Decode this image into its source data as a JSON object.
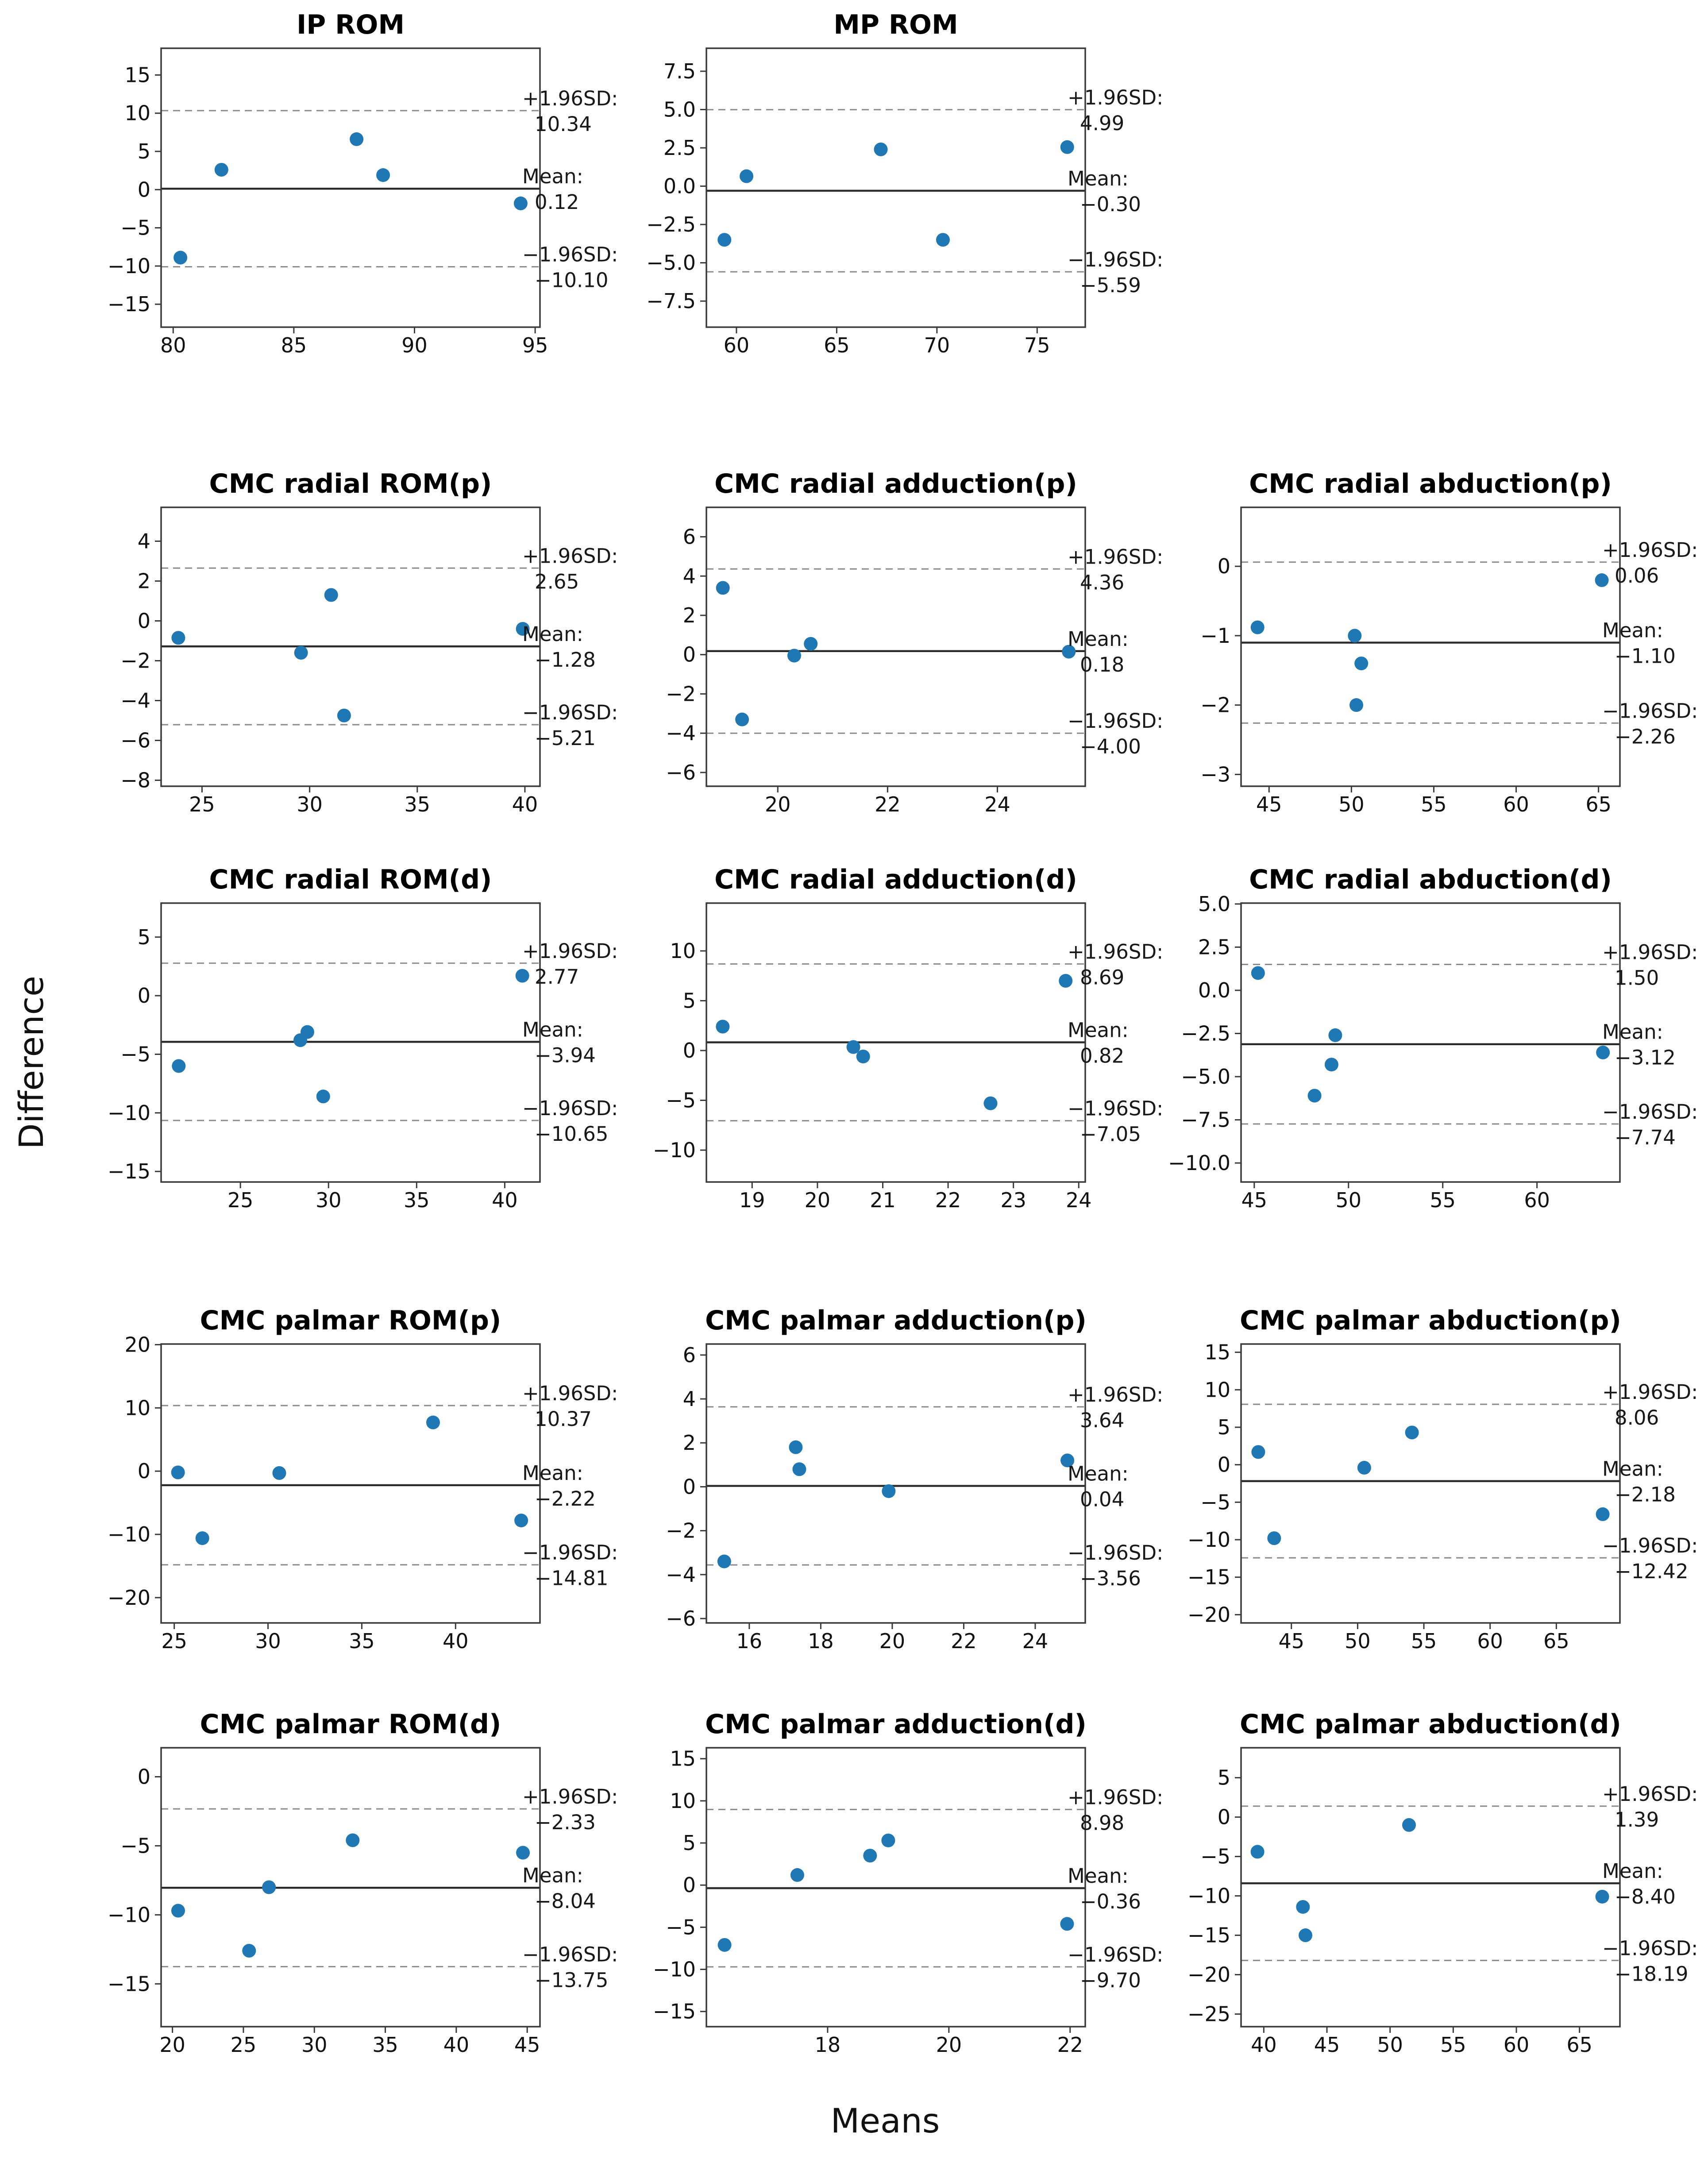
{
  "figure": {
    "ylabel": "Difference",
    "xlabel": "Means",
    "annotations": {
      "upper_label": "+1.96SD:",
      "mean_label": "Mean:",
      "lower_label": "−1.96SD:"
    },
    "colors": {
      "point": "#1f77b4",
      "mean_line": "#2b2b2b",
      "sd_line": "#8a8a8a",
      "spine": "#3a3a3a",
      "text": "#1a1a1a"
    }
  },
  "chart_data": {
    "type": "scatter",
    "subtype": "bland-altman-grid",
    "grid": false,
    "legend": false,
    "shared_xlabel": "Means",
    "shared_ylabel": "Difference",
    "plots": [
      {
        "title": "IP ROM",
        "xlim": [
          79.5,
          95.2
        ],
        "ylim": [
          -18.0,
          18.5
        ],
        "xticks": [
          80,
          85,
          90,
          95
        ],
        "xtick_labels": [
          "80",
          "85",
          "90",
          "95"
        ],
        "yticks": [
          15,
          10,
          5,
          0,
          -5,
          -10,
          -15
        ],
        "ytick_labels": [
          "15",
          "10",
          "5",
          "0",
          "−5",
          "−10",
          "−15"
        ],
        "points": [
          [
            80.3,
            -8.9
          ],
          [
            82.0,
            2.6
          ],
          [
            87.6,
            6.6
          ],
          [
            88.7,
            1.9
          ],
          [
            94.4,
            -1.8
          ]
        ],
        "mean": 0.12,
        "upper": 10.34,
        "lower": -10.1,
        "mean_text": "0.12",
        "upper_text": "10.34",
        "lower_text": "−10.10"
      },
      {
        "title": "MP ROM",
        "xlim": [
          58.5,
          77.4
        ],
        "ylim": [
          -9.2,
          9.0
        ],
        "xticks": [
          60,
          65,
          70,
          75
        ],
        "xtick_labels": [
          "60",
          "65",
          "70",
          "75"
        ],
        "yticks": [
          7.5,
          5.0,
          2.5,
          0.0,
          -2.5,
          -5.0,
          -7.5
        ],
        "ytick_labels": [
          "7.5",
          "5.0",
          "2.5",
          "0.0",
          "−2.5",
          "−5.0",
          "−7.5"
        ],
        "points": [
          [
            59.4,
            -3.5
          ],
          [
            60.5,
            0.65
          ],
          [
            67.2,
            2.4
          ],
          [
            70.3,
            -3.5
          ],
          [
            76.5,
            2.55
          ]
        ],
        "mean": -0.3,
        "upper": 4.99,
        "lower": -5.59,
        "mean_text": "−0.30",
        "upper_text": "4.99",
        "lower_text": "−5.59"
      },
      {
        "title": "CMC radial ROM(p)",
        "xlim": [
          23.1,
          40.7
        ],
        "ylim": [
          -8.3,
          5.7
        ],
        "xticks": [
          25,
          30,
          35,
          40
        ],
        "xtick_labels": [
          "25",
          "30",
          "35",
          "40"
        ],
        "yticks": [
          4,
          2,
          0,
          -2,
          -4,
          -6,
          -8
        ],
        "ytick_labels": [
          "4",
          "2",
          "0",
          "−2",
          "−4",
          "−6",
          "−8"
        ],
        "points": [
          [
            23.9,
            -0.85
          ],
          [
            29.6,
            -1.6
          ],
          [
            31.0,
            1.3
          ],
          [
            31.6,
            -4.75
          ],
          [
            39.9,
            -0.4
          ]
        ],
        "mean": -1.28,
        "upper": 2.65,
        "lower": -5.21,
        "mean_text": "−1.28",
        "upper_text": "2.65",
        "lower_text": "−5.21"
      },
      {
        "title": "CMC radial adduction(p)",
        "xlim": [
          18.7,
          25.6
        ],
        "ylim": [
          -6.7,
          7.5
        ],
        "xticks": [
          20,
          22,
          24
        ],
        "xtick_labels": [
          "20",
          "22",
          "24"
        ],
        "yticks": [
          6,
          4,
          2,
          0,
          -2,
          -4,
          -6
        ],
        "ytick_labels": [
          "6",
          "4",
          "2",
          "0",
          "−2",
          "−4",
          "−6"
        ],
        "points": [
          [
            19.0,
            3.4
          ],
          [
            19.35,
            -3.3
          ],
          [
            20.3,
            -0.05
          ],
          [
            20.6,
            0.55
          ],
          [
            25.3,
            0.15
          ]
        ],
        "mean": 0.18,
        "upper": 4.36,
        "lower": -4.0,
        "mean_text": "0.18",
        "upper_text": "4.36",
        "lower_text": "−4.00"
      },
      {
        "title": "CMC radial abduction(p)",
        "xlim": [
          43.3,
          66.3
        ],
        "ylim": [
          -3.17,
          0.85
        ],
        "xticks": [
          45,
          50,
          55,
          60,
          65
        ],
        "xtick_labels": [
          "45",
          "50",
          "55",
          "60",
          "65"
        ],
        "yticks": [
          0,
          -1,
          -2,
          -3
        ],
        "ytick_labels": [
          "0",
          "−1",
          "−2",
          "−3"
        ],
        "points": [
          [
            44.3,
            -0.88
          ],
          [
            50.2,
            -1.0
          ],
          [
            50.6,
            -1.4
          ],
          [
            50.3,
            -2.0
          ],
          [
            65.2,
            -0.2
          ]
        ],
        "mean": -1.1,
        "upper": 0.06,
        "lower": -2.26,
        "mean_text": "−1.10",
        "upper_text": "0.06",
        "lower_text": "−2.26"
      },
      {
        "title": "CMC radial ROM(d)",
        "xlim": [
          20.5,
          42.0
        ],
        "ylim": [
          -15.9,
          7.9
        ],
        "xticks": [
          25,
          30,
          35,
          40
        ],
        "xtick_labels": [
          "25",
          "30",
          "35",
          "40"
        ],
        "yticks": [
          5,
          0,
          -5,
          -10,
          -15
        ],
        "ytick_labels": [
          "5",
          "0",
          "−5",
          "−10",
          "−15"
        ],
        "points": [
          [
            21.5,
            -6.0
          ],
          [
            28.4,
            -3.8
          ],
          [
            28.8,
            -3.1
          ],
          [
            29.7,
            -8.6
          ],
          [
            41.0,
            1.7
          ]
        ],
        "mean": -3.94,
        "upper": 2.77,
        "lower": -10.65,
        "mean_text": "−3.94",
        "upper_text": "2.77",
        "lower_text": "−10.65"
      },
      {
        "title": "CMC radial adduction(d)",
        "xlim": [
          18.3,
          24.1
        ],
        "ylim": [
          -13.2,
          14.8
        ],
        "xticks": [
          19,
          20,
          21,
          22,
          23,
          24
        ],
        "xtick_labels": [
          "19",
          "20",
          "21",
          "22",
          "23",
          "24"
        ],
        "yticks": [
          10,
          5,
          0,
          -5,
          -10
        ],
        "ytick_labels": [
          "10",
          "5",
          "0",
          "−5",
          "−10"
        ],
        "points": [
          [
            18.55,
            2.4
          ],
          [
            20.55,
            0.35
          ],
          [
            20.7,
            -0.6
          ],
          [
            22.65,
            -5.3
          ],
          [
            23.8,
            7.0
          ]
        ],
        "mean": 0.82,
        "upper": 8.69,
        "lower": -7.05,
        "mean_text": "0.82",
        "upper_text": "8.69",
        "lower_text": "−7.05"
      },
      {
        "title": "CMC radial abduction(d)",
        "xlim": [
          44.3,
          64.4
        ],
        "ylim": [
          -11.1,
          5.05
        ],
        "xticks": [
          45,
          50,
          55,
          60
        ],
        "xtick_labels": [
          "45",
          "50",
          "55",
          "60"
        ],
        "yticks": [
          5.0,
          2.5,
          0.0,
          -2.5,
          -5.0,
          -7.5,
          -10.0
        ],
        "ytick_labels": [
          "5.0",
          "2.5",
          "0.0",
          "−2.5",
          "−5.0",
          "−7.5",
          "−10.0"
        ],
        "points": [
          [
            45.2,
            1.0
          ],
          [
            48.2,
            -6.1
          ],
          [
            49.1,
            -4.3
          ],
          [
            49.3,
            -2.6
          ],
          [
            63.5,
            -3.6
          ]
        ],
        "mean": -3.12,
        "upper": 1.5,
        "lower": -7.74,
        "mean_text": "−3.12",
        "upper_text": "1.50",
        "lower_text": "−7.74"
      },
      {
        "title": "CMC palmar ROM(p)",
        "xlim": [
          24.3,
          44.5
        ],
        "ylim": [
          -24.0,
          20.1
        ],
        "xticks": [
          25,
          30,
          35,
          40
        ],
        "xtick_labels": [
          "25",
          "30",
          "35",
          "40"
        ],
        "yticks": [
          20,
          10,
          0,
          -10,
          -20
        ],
        "ytick_labels": [
          "20",
          "10",
          "0",
          "−10",
          "−20"
        ],
        "points": [
          [
            25.2,
            -0.2
          ],
          [
            26.5,
            -10.6
          ],
          [
            30.6,
            -0.3
          ],
          [
            38.8,
            7.7
          ],
          [
            43.5,
            -7.8
          ]
        ],
        "mean": -2.22,
        "upper": 10.37,
        "lower": -14.81,
        "mean_text": "−2.22",
        "upper_text": "10.37",
        "lower_text": "−14.81"
      },
      {
        "title": "CMC palmar adduction(p)",
        "xlim": [
          14.8,
          25.4
        ],
        "ylim": [
          -6.2,
          6.5
        ],
        "xticks": [
          16,
          18,
          20,
          22,
          24
        ],
        "xtick_labels": [
          "16",
          "18",
          "20",
          "22",
          "24"
        ],
        "yticks": [
          6,
          4,
          2,
          0,
          -2,
          -4,
          -6
        ],
        "ytick_labels": [
          "6",
          "4",
          "2",
          "0",
          "−2",
          "−4",
          "−6"
        ],
        "points": [
          [
            15.3,
            -3.4
          ],
          [
            17.3,
            1.8
          ],
          [
            17.4,
            0.8
          ],
          [
            19.9,
            -0.2
          ],
          [
            24.9,
            1.2
          ]
        ],
        "mean": 0.04,
        "upper": 3.64,
        "lower": -3.56,
        "mean_text": "0.04",
        "upper_text": "3.64",
        "lower_text": "−3.56"
      },
      {
        "title": "CMC palmar abduction(p)",
        "xlim": [
          41.2,
          69.8
        ],
        "ylim": [
          -21.1,
          16.1
        ],
        "xticks": [
          45,
          50,
          55,
          60,
          65
        ],
        "xtick_labels": [
          "45",
          "50",
          "55",
          "60",
          "65"
        ],
        "yticks": [
          15,
          10,
          5,
          0,
          -5,
          -10,
          -15,
          -20
        ],
        "ytick_labels": [
          "15",
          "10",
          "5",
          "0",
          "−5",
          "−10",
          "−15",
          "−20"
        ],
        "points": [
          [
            42.5,
            1.7
          ],
          [
            43.7,
            -9.8
          ],
          [
            50.5,
            -0.4
          ],
          [
            54.1,
            4.3
          ],
          [
            68.5,
            -6.6
          ]
        ],
        "mean": -2.18,
        "upper": 8.06,
        "lower": -12.42,
        "mean_text": "−2.18",
        "upper_text": "8.06",
        "lower_text": "−12.42"
      },
      {
        "title": "CMC palmar ROM(d)",
        "xlim": [
          19.2,
          45.9
        ],
        "ylim": [
          -18.1,
          2.1
        ],
        "xticks": [
          20,
          25,
          30,
          35,
          40,
          45
        ],
        "xtick_labels": [
          "20",
          "25",
          "30",
          "35",
          "40",
          "45"
        ],
        "yticks": [
          0,
          -5,
          -10,
          -15
        ],
        "ytick_labels": [
          "0",
          "−5",
          "−10",
          "−15"
        ],
        "points": [
          [
            20.4,
            -9.7
          ],
          [
            25.4,
            -12.6
          ],
          [
            26.8,
            -8.0
          ],
          [
            32.7,
            -4.6
          ],
          [
            44.7,
            -5.5
          ]
        ],
        "mean": -8.04,
        "upper": -2.33,
        "lower": -13.75,
        "mean_text": "−8.04",
        "upper_text": "−2.33",
        "lower_text": "−13.75"
      },
      {
        "title": "CMC palmar adduction(d)",
        "xlim": [
          16.0,
          22.25
        ],
        "ylim": [
          -16.8,
          16.3
        ],
        "xticks": [
          18,
          20,
          22
        ],
        "xtick_labels": [
          "18",
          "20",
          "22"
        ],
        "yticks": [
          15,
          10,
          5,
          0,
          -5,
          -10,
          -15
        ],
        "ytick_labels": [
          "15",
          "10",
          "5",
          "0",
          "−5",
          "−10",
          "−15"
        ],
        "points": [
          [
            16.3,
            -7.1
          ],
          [
            17.5,
            1.2
          ],
          [
            18.7,
            3.5
          ],
          [
            19.0,
            5.3
          ],
          [
            21.95,
            -4.6
          ]
        ],
        "mean": -0.36,
        "upper": 8.98,
        "lower": -9.7,
        "mean_text": "−0.36",
        "upper_text": "8.98",
        "lower_text": "−9.70"
      },
      {
        "title": "CMC palmar abduction(d)",
        "xlim": [
          38.2,
          68.2
        ],
        "ylim": [
          -26.6,
          8.8
        ],
        "xticks": [
          40,
          45,
          50,
          55,
          60,
          65
        ],
        "xtick_labels": [
          "40",
          "45",
          "50",
          "55",
          "60",
          "65"
        ],
        "yticks": [
          5,
          0,
          -5,
          -10,
          -15,
          -20,
          -25
        ],
        "ytick_labels": [
          "5",
          "0",
          "−5",
          "−10",
          "−15",
          "−20",
          "−25"
        ],
        "points": [
          [
            39.5,
            -4.4
          ],
          [
            43.1,
            -11.4
          ],
          [
            43.3,
            -15.0
          ],
          [
            51.5,
            -1.0
          ],
          [
            66.8,
            -10.1
          ]
        ],
        "mean": -8.4,
        "upper": 1.39,
        "lower": -18.19,
        "mean_text": "−8.40",
        "upper_text": "1.39",
        "lower_text": "−18.19"
      }
    ]
  }
}
